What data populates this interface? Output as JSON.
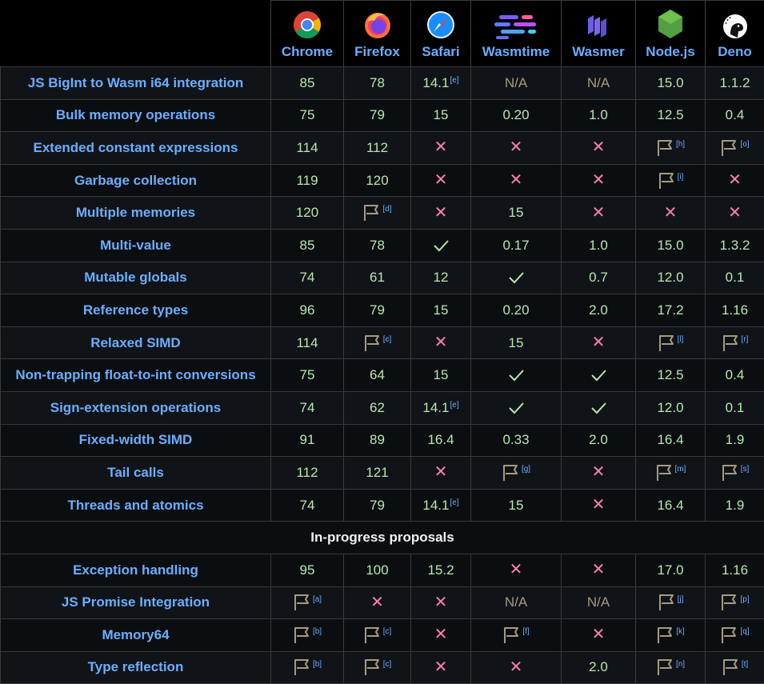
{
  "browsers": [
    {
      "name": "Chrome",
      "icon": "chrome-logo-icon"
    },
    {
      "name": "Firefox",
      "icon": "firefox-logo-icon"
    },
    {
      "name": "Safari",
      "icon": "safari-logo-icon"
    },
    {
      "name": "Wasmtime",
      "icon": "wasmtime-logo-icon"
    },
    {
      "name": "Wasmer",
      "icon": "wasmer-logo-icon"
    },
    {
      "name": "Node.js",
      "icon": "nodejs-logo-icon"
    },
    {
      "name": "Deno",
      "icon": "deno-logo-icon"
    }
  ],
  "section_label": "In-progress proposals",
  "colors": {
    "header_text": "#6aaeff",
    "version_text": "#b8e6b0",
    "no_support": "#ff7fb0",
    "flag": "#a89a80"
  },
  "rows": [
    {
      "feature": "JS BigInt to Wasm i64 integration",
      "cells": [
        {
          "t": "v",
          "v": "85"
        },
        {
          "t": "v",
          "v": "78"
        },
        {
          "t": "v",
          "v": "14.1",
          "n": "[e]"
        },
        {
          "t": "na",
          "v": "N/A"
        },
        {
          "t": "na",
          "v": "N/A"
        },
        {
          "t": "v",
          "v": "15.0"
        },
        {
          "t": "v",
          "v": "1.1.2"
        }
      ]
    },
    {
      "feature": "Bulk memory operations",
      "cells": [
        {
          "t": "v",
          "v": "75"
        },
        {
          "t": "v",
          "v": "79"
        },
        {
          "t": "v",
          "v": "15"
        },
        {
          "t": "v",
          "v": "0.20"
        },
        {
          "t": "v",
          "v": "1.0"
        },
        {
          "t": "v",
          "v": "12.5"
        },
        {
          "t": "v",
          "v": "0.4"
        }
      ]
    },
    {
      "feature": "Extended constant expressions",
      "cells": [
        {
          "t": "v",
          "v": "114"
        },
        {
          "t": "v",
          "v": "112"
        },
        {
          "t": "x"
        },
        {
          "t": "x"
        },
        {
          "t": "x"
        },
        {
          "t": "f",
          "n": "[h]"
        },
        {
          "t": "f",
          "n": "[o]"
        }
      ]
    },
    {
      "feature": "Garbage collection",
      "cells": [
        {
          "t": "v",
          "v": "119"
        },
        {
          "t": "v",
          "v": "120"
        },
        {
          "t": "x"
        },
        {
          "t": "x"
        },
        {
          "t": "x"
        },
        {
          "t": "f",
          "n": "[i]"
        },
        {
          "t": "x"
        }
      ]
    },
    {
      "feature": "Multiple memories",
      "cells": [
        {
          "t": "v",
          "v": "120"
        },
        {
          "t": "f",
          "n": "[d]"
        },
        {
          "t": "x"
        },
        {
          "t": "v",
          "v": "15"
        },
        {
          "t": "x"
        },
        {
          "t": "x"
        },
        {
          "t": "x"
        }
      ]
    },
    {
      "feature": "Multi-value",
      "cells": [
        {
          "t": "v",
          "v": "85"
        },
        {
          "t": "v",
          "v": "78"
        },
        {
          "t": "c"
        },
        {
          "t": "v",
          "v": "0.17"
        },
        {
          "t": "v",
          "v": "1.0"
        },
        {
          "t": "v",
          "v": "15.0"
        },
        {
          "t": "v",
          "v": "1.3.2"
        }
      ]
    },
    {
      "feature": "Mutable globals",
      "cells": [
        {
          "t": "v",
          "v": "74"
        },
        {
          "t": "v",
          "v": "61"
        },
        {
          "t": "v",
          "v": "12"
        },
        {
          "t": "c"
        },
        {
          "t": "v",
          "v": "0.7"
        },
        {
          "t": "v",
          "v": "12.0"
        },
        {
          "t": "v",
          "v": "0.1"
        }
      ]
    },
    {
      "feature": "Reference types",
      "cells": [
        {
          "t": "v",
          "v": "96"
        },
        {
          "t": "v",
          "v": "79"
        },
        {
          "t": "v",
          "v": "15"
        },
        {
          "t": "v",
          "v": "0.20"
        },
        {
          "t": "v",
          "v": "2.0"
        },
        {
          "t": "v",
          "v": "17.2"
        },
        {
          "t": "v",
          "v": "1.16"
        }
      ]
    },
    {
      "feature": "Relaxed SIMD",
      "cells": [
        {
          "t": "v",
          "v": "114"
        },
        {
          "t": "f",
          "n": "[c]"
        },
        {
          "t": "x"
        },
        {
          "t": "v",
          "v": "15"
        },
        {
          "t": "x"
        },
        {
          "t": "f",
          "n": "[l]"
        },
        {
          "t": "f",
          "n": "[r]"
        }
      ]
    },
    {
      "feature": "Non-trapping float-to-int conversions",
      "cells": [
        {
          "t": "v",
          "v": "75"
        },
        {
          "t": "v",
          "v": "64"
        },
        {
          "t": "v",
          "v": "15"
        },
        {
          "t": "c"
        },
        {
          "t": "c"
        },
        {
          "t": "v",
          "v": "12.5"
        },
        {
          "t": "v",
          "v": "0.4"
        }
      ]
    },
    {
      "feature": "Sign-extension operations",
      "cells": [
        {
          "t": "v",
          "v": "74"
        },
        {
          "t": "v",
          "v": "62"
        },
        {
          "t": "v",
          "v": "14.1",
          "n": "[e]"
        },
        {
          "t": "c"
        },
        {
          "t": "c"
        },
        {
          "t": "v",
          "v": "12.0"
        },
        {
          "t": "v",
          "v": "0.1"
        }
      ]
    },
    {
      "feature": "Fixed-width SIMD",
      "cells": [
        {
          "t": "v",
          "v": "91"
        },
        {
          "t": "v",
          "v": "89"
        },
        {
          "t": "v",
          "v": "16.4"
        },
        {
          "t": "v",
          "v": "0.33"
        },
        {
          "t": "v",
          "v": "2.0"
        },
        {
          "t": "v",
          "v": "16.4"
        },
        {
          "t": "v",
          "v": "1.9"
        }
      ]
    },
    {
      "feature": "Tail calls",
      "cells": [
        {
          "t": "v",
          "v": "112"
        },
        {
          "t": "v",
          "v": "121"
        },
        {
          "t": "x"
        },
        {
          "t": "f",
          "n": "[g]"
        },
        {
          "t": "x"
        },
        {
          "t": "f",
          "n": "[m]"
        },
        {
          "t": "f",
          "n": "[s]"
        }
      ]
    },
    {
      "feature": "Threads and atomics",
      "cells": [
        {
          "t": "v",
          "v": "74"
        },
        {
          "t": "v",
          "v": "79"
        },
        {
          "t": "v",
          "v": "14.1",
          "n": "[e]"
        },
        {
          "t": "v",
          "v": "15"
        },
        {
          "t": "x"
        },
        {
          "t": "v",
          "v": "16.4"
        },
        {
          "t": "v",
          "v": "1.9"
        }
      ]
    },
    {
      "section": true
    },
    {
      "feature": "Exception handling",
      "cells": [
        {
          "t": "v",
          "v": "95"
        },
        {
          "t": "v",
          "v": "100"
        },
        {
          "t": "v",
          "v": "15.2"
        },
        {
          "t": "x"
        },
        {
          "t": "x"
        },
        {
          "t": "v",
          "v": "17.0"
        },
        {
          "t": "v",
          "v": "1.16"
        }
      ]
    },
    {
      "feature": "JS Promise Integration",
      "cells": [
        {
          "t": "f",
          "n": "[a]"
        },
        {
          "t": "x"
        },
        {
          "t": "x"
        },
        {
          "t": "na",
          "v": "N/A"
        },
        {
          "t": "na",
          "v": "N/A"
        },
        {
          "t": "f",
          "n": "[j]"
        },
        {
          "t": "f",
          "n": "[p]"
        }
      ]
    },
    {
      "feature": "Memory64",
      "cells": [
        {
          "t": "f",
          "n": "[b]"
        },
        {
          "t": "f",
          "n": "[c]"
        },
        {
          "t": "x"
        },
        {
          "t": "f",
          "n": "[f]"
        },
        {
          "t": "x"
        },
        {
          "t": "f",
          "n": "[k]"
        },
        {
          "t": "f",
          "n": "[q]"
        }
      ]
    },
    {
      "feature": "Type reflection",
      "cells": [
        {
          "t": "f",
          "n": "[b]"
        },
        {
          "t": "f",
          "n": "[c]"
        },
        {
          "t": "x"
        },
        {
          "t": "x"
        },
        {
          "t": "v",
          "v": "2.0"
        },
        {
          "t": "f",
          "n": "[n]"
        },
        {
          "t": "f",
          "n": "[t]"
        }
      ]
    }
  ]
}
